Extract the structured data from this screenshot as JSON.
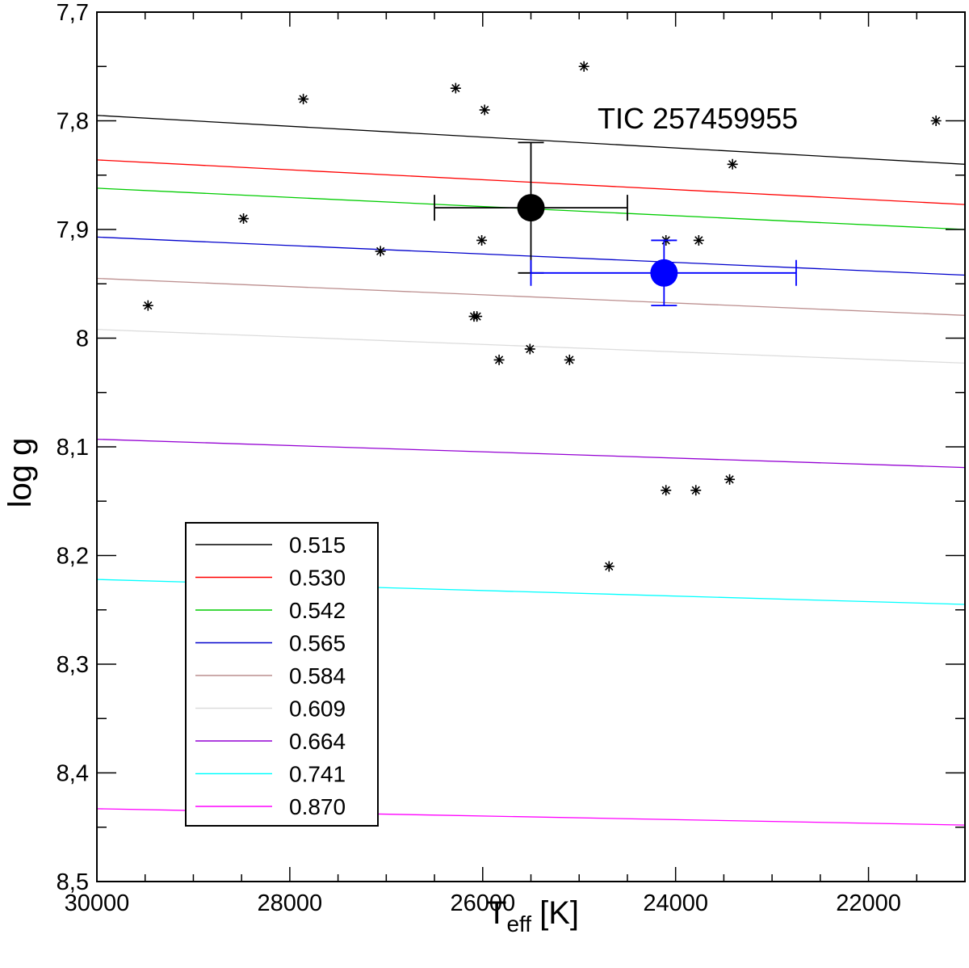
{
  "chart_data": {
    "type": "scatter",
    "title": "",
    "annotation": "TIC 257459955",
    "xlabel_main": "T",
    "xlabel_sub": "eff",
    "xlabel_unit": "[K]",
    "ylabel": "log g",
    "xlim": [
      30000,
      21000
    ],
    "ylim": [
      7.7,
      8.5
    ],
    "x_reversed": true,
    "y_reversed": true,
    "x_ticks": [
      {
        "value": 30000,
        "label": "30000"
      },
      {
        "value": 28000,
        "label": "28000"
      },
      {
        "value": 26000,
        "label": "26000"
      },
      {
        "value": 24000,
        "label": "24000"
      },
      {
        "value": 22000,
        "label": "22000"
      }
    ],
    "y_ticks": [
      {
        "value": 7.7,
        "label": "7,7"
      },
      {
        "value": 7.8,
        "label": "7,8"
      },
      {
        "value": 7.9,
        "label": "7,9"
      },
      {
        "value": 8.0,
        "label": "8"
      },
      {
        "value": 8.1,
        "label": "8,1"
      },
      {
        "value": 8.2,
        "label": "8,2"
      },
      {
        "value": 8.3,
        "label": "8,3"
      },
      {
        "value": 8.4,
        "label": "8,4"
      },
      {
        "value": 8.5,
        "label": "8,5"
      }
    ],
    "tracks": [
      {
        "name": "0.515",
        "color": "#000000",
        "x": [
          30000,
          21000
        ],
        "y": [
          7.795,
          7.84
        ]
      },
      {
        "name": "0.530",
        "color": "#ff0000",
        "x": [
          30000,
          21000
        ],
        "y": [
          7.836,
          7.877
        ]
      },
      {
        "name": "0.542",
        "color": "#00cc00",
        "x": [
          30000,
          21000
        ],
        "y": [
          7.862,
          7.9
        ]
      },
      {
        "name": "0.565",
        "color": "#0000cc",
        "x": [
          30000,
          21000
        ],
        "y": [
          7.907,
          7.942
        ]
      },
      {
        "name": "0.584",
        "color": "#bc8f8f",
        "x": [
          30000,
          21000
        ],
        "y": [
          7.945,
          7.979
        ]
      },
      {
        "name": "0.609",
        "color": "#dcdcdc",
        "x": [
          30000,
          21000
        ],
        "y": [
          7.992,
          8.023
        ]
      },
      {
        "name": "0.664",
        "color": "#9400d3",
        "x": [
          30000,
          21000
        ],
        "y": [
          8.093,
          8.119
        ]
      },
      {
        "name": "0.741",
        "color": "#00ffff",
        "x": [
          30000,
          21000
        ],
        "y": [
          8.222,
          8.245
        ]
      },
      {
        "name": "0.870",
        "color": "#ff00ff",
        "x": [
          30000,
          21000
        ],
        "y": [
          8.433,
          8.448
        ]
      }
    ],
    "comparison_stars": {
      "marker": "asterisk",
      "color": "#000000",
      "x": [
        24950,
        26280,
        27860,
        25980,
        21300,
        23410,
        28480,
        26010,
        24100,
        23760,
        27060,
        29470,
        26090,
        26060,
        25510,
        25830,
        25100,
        24100,
        23790,
        23440,
        24690
      ],
      "y": [
        7.75,
        7.77,
        7.78,
        7.79,
        7.8,
        7.84,
        7.89,
        7.91,
        7.91,
        7.91,
        7.92,
        7.97,
        7.98,
        7.98,
        8.01,
        8.02,
        8.02,
        8.14,
        8.14,
        8.13,
        8.21
      ]
    },
    "target_measurements": [
      {
        "name": "black",
        "color": "#000000",
        "x": 25500,
        "y": 7.88,
        "x_err": [
          26500,
          24500
        ],
        "y_err": [
          7.82,
          7.94
        ]
      },
      {
        "name": "blue",
        "color": "#0000ff",
        "x": 24120,
        "y": 7.94,
        "x_err": [
          25500,
          22750
        ],
        "y_err": [
          7.91,
          7.97
        ]
      }
    ]
  }
}
